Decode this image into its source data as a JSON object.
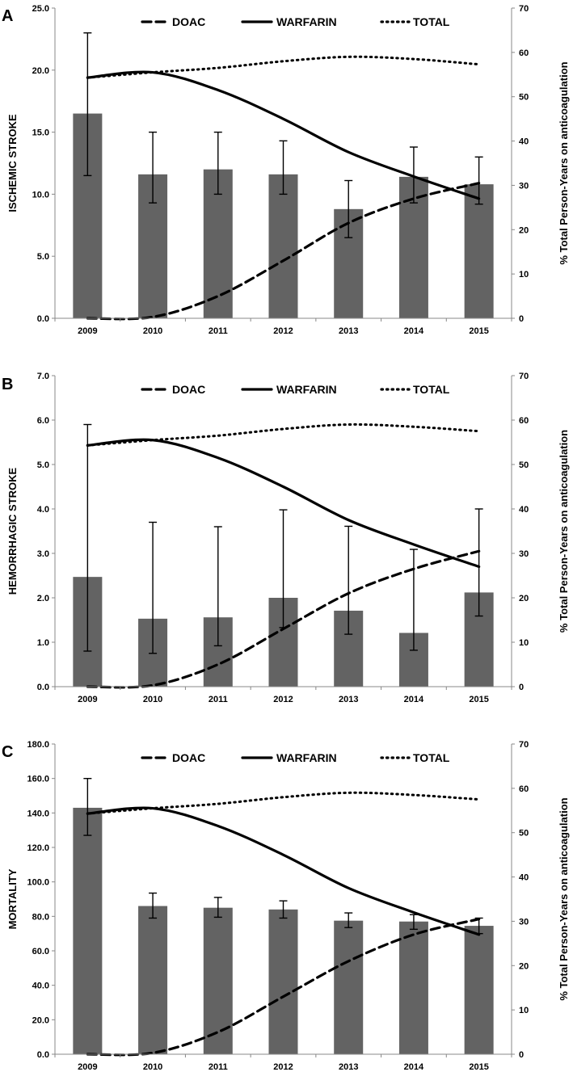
{
  "chart_data": [
    {
      "type": "bar",
      "panel": "A",
      "title": "",
      "ylabel": "ISCHEMIC STROKE",
      "y2label": "% Total Person-Years on anticoagulation",
      "categories": [
        "2009",
        "2010",
        "2011",
        "2012",
        "2013",
        "2014",
        "2015"
      ],
      "ylim": [
        0,
        25
      ],
      "yticks": [
        "0.0",
        "5.0",
        "10.0",
        "15.0",
        "20.0",
        "25.0"
      ],
      "y2lim": [
        0,
        70
      ],
      "y2ticks": [
        "0",
        "10",
        "20",
        "30",
        "40",
        "50",
        "60",
        "70"
      ],
      "legend_position": "top-center",
      "series": [
        {
          "name": "ISCHEMIC STROKE",
          "kind": "bar",
          "axis": "left",
          "values": [
            16.5,
            11.6,
            12.0,
            11.6,
            8.8,
            11.4,
            10.8
          ],
          "error_low": [
            11.5,
            9.3,
            10.0,
            10.0,
            6.5,
            9.3,
            9.2
          ],
          "error_high": [
            23.0,
            15.0,
            15.0,
            14.3,
            11.1,
            13.8,
            13.0
          ]
        },
        {
          "name": "DOAC",
          "kind": "line",
          "style": "dashed",
          "axis": "right",
          "values": [
            0,
            0.3,
            5,
            13,
            21.5,
            27,
            30.5
          ]
        },
        {
          "name": "WARFARIN",
          "kind": "line",
          "style": "solid",
          "axis": "right",
          "values": [
            54.3,
            55.5,
            51.5,
            45,
            37.5,
            32,
            27
          ]
        },
        {
          "name": "TOTAL",
          "kind": "line",
          "style": "dotted",
          "axis": "right",
          "values": [
            54.3,
            55.5,
            56.5,
            58,
            59,
            58.5,
            57.3
          ]
        }
      ]
    },
    {
      "type": "bar",
      "panel": "B",
      "title": "",
      "ylabel": "HEMORRHAGIC STROKE",
      "y2label": "% Total Person-Years on anticoagulation",
      "categories": [
        "2009",
        "2010",
        "2011",
        "2012",
        "2013",
        "2014",
        "2015"
      ],
      "ylim": [
        0,
        7
      ],
      "yticks": [
        "0.0",
        "1.0",
        "2.0",
        "3.0",
        "4.0",
        "5.0",
        "6.0",
        "7.0"
      ],
      "y2lim": [
        0,
        70
      ],
      "y2ticks": [
        "0",
        "10",
        "20",
        "30",
        "40",
        "50",
        "60",
        "70"
      ],
      "legend_position": "top-center",
      "series": [
        {
          "name": "HEMORRHAGIC STROKE",
          "kind": "bar",
          "axis": "left",
          "values": [
            2.47,
            1.53,
            1.56,
            2.0,
            1.71,
            1.21,
            2.12
          ],
          "error_low": [
            0.8,
            0.75,
            0.92,
            1.33,
            1.18,
            0.82,
            1.59
          ],
          "error_high": [
            5.9,
            3.7,
            3.6,
            3.98,
            3.61,
            3.09,
            4.0
          ]
        },
        {
          "name": "DOAC",
          "kind": "line",
          "style": "dashed",
          "axis": "right",
          "values": [
            0,
            0.3,
            5,
            13,
            21,
            26.5,
            30.5
          ]
        },
        {
          "name": "WARFARIN",
          "kind": "line",
          "style": "solid",
          "axis": "right",
          "values": [
            54.3,
            55.5,
            51.5,
            45,
            37.5,
            32,
            27
          ]
        },
        {
          "name": "TOTAL",
          "kind": "line",
          "style": "dotted",
          "axis": "right",
          "values": [
            54.3,
            55.5,
            56.5,
            58,
            59,
            58.5,
            57.5
          ]
        }
      ]
    },
    {
      "type": "bar",
      "panel": "C",
      "title": "",
      "ylabel": "MORTALITY",
      "y2label": "% Total Person-Years on anticoagulation",
      "categories": [
        "2009",
        "2010",
        "2011",
        "2012",
        "2013",
        "2014",
        "2015"
      ],
      "ylim": [
        0,
        180
      ],
      "yticks": [
        "0.0",
        "20.0",
        "40.0",
        "60.0",
        "80.0",
        "100.0",
        "120.0",
        "140.0",
        "160.0",
        "180.0"
      ],
      "y2lim": [
        0,
        70
      ],
      "y2ticks": [
        "0",
        "10",
        "20",
        "30",
        "40",
        "50",
        "60",
        "70"
      ],
      "legend_position": "top-center",
      "series": [
        {
          "name": "MORTALITY",
          "kind": "bar",
          "axis": "left",
          "values": [
            143,
            86,
            85,
            84,
            77.5,
            77,
            74.5
          ],
          "error_low": [
            127,
            79,
            79.5,
            79,
            73.5,
            72.5,
            70
          ],
          "error_high": [
            160,
            93.5,
            91,
            89,
            82,
            81,
            79
          ]
        },
        {
          "name": "DOAC",
          "kind": "line",
          "style": "dashed",
          "axis": "right",
          "values": [
            0,
            0.3,
            5,
            13,
            21,
            27,
            30.5
          ]
        },
        {
          "name": "WARFARIN",
          "kind": "line",
          "style": "solid",
          "axis": "right",
          "values": [
            54.3,
            55.5,
            51.5,
            45,
            37.5,
            32,
            27
          ]
        },
        {
          "name": "TOTAL",
          "kind": "line",
          "style": "dotted",
          "axis": "right",
          "values": [
            54.3,
            55.5,
            56.5,
            58,
            59,
            58.5,
            57.5
          ]
        }
      ]
    }
  ]
}
